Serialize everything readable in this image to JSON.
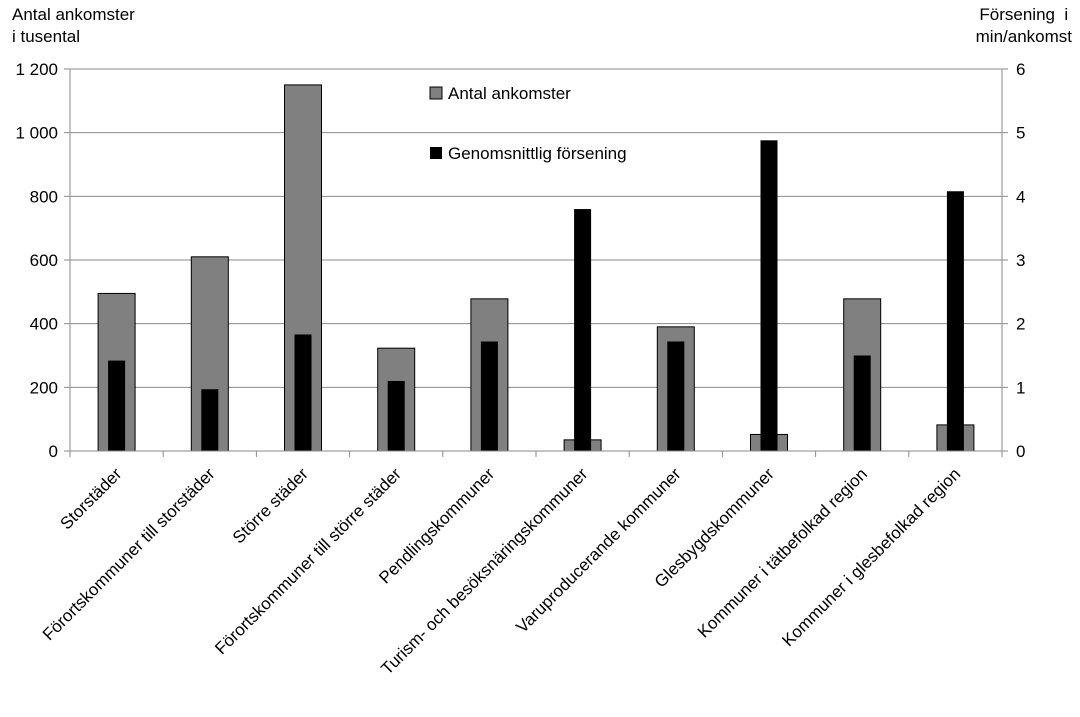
{
  "chart_data": {
    "type": "bar",
    "categories": [
      "Storstäder",
      "Förortskommuner till storstäder",
      "Större städer",
      "Förortskommuner till större städer",
      "Pendlingskommuner",
      "Turism- och besöksnäringskommuner",
      "Varuproducerande kommuner",
      "Glesbygdskommuner",
      "Kommuner i tätbefolkad region",
      "Kommuner i glesbefolkad region"
    ],
    "series": [
      {
        "name": "Antal ankomster",
        "axis": "left",
        "color": "#808080",
        "values": [
          495,
          610,
          1150,
          323,
          478,
          35,
          390,
          52,
          478,
          82
        ]
      },
      {
        "name": "Genomsnittlig försening",
        "axis": "right",
        "color": "#000000",
        "values": [
          1.42,
          0.97,
          1.83,
          1.1,
          1.72,
          3.8,
          1.72,
          4.88,
          1.5,
          4.08
        ]
      }
    ],
    "ylabel_left": [
      "Antal ankomster",
      "i tusental"
    ],
    "ylabel_right": [
      "Försening  i",
      "min/ankomst"
    ],
    "ylim_left": [
      0,
      1200
    ],
    "ylim_right": [
      0,
      6
    ],
    "yticks_left": [
      "0",
      "200",
      "400",
      "600",
      "800",
      "1 000",
      "1 200"
    ],
    "yticks_right": [
      "0",
      "1",
      "2",
      "3",
      "4",
      "5",
      "6"
    ],
    "grid": true,
    "legend_position": "top-center"
  }
}
